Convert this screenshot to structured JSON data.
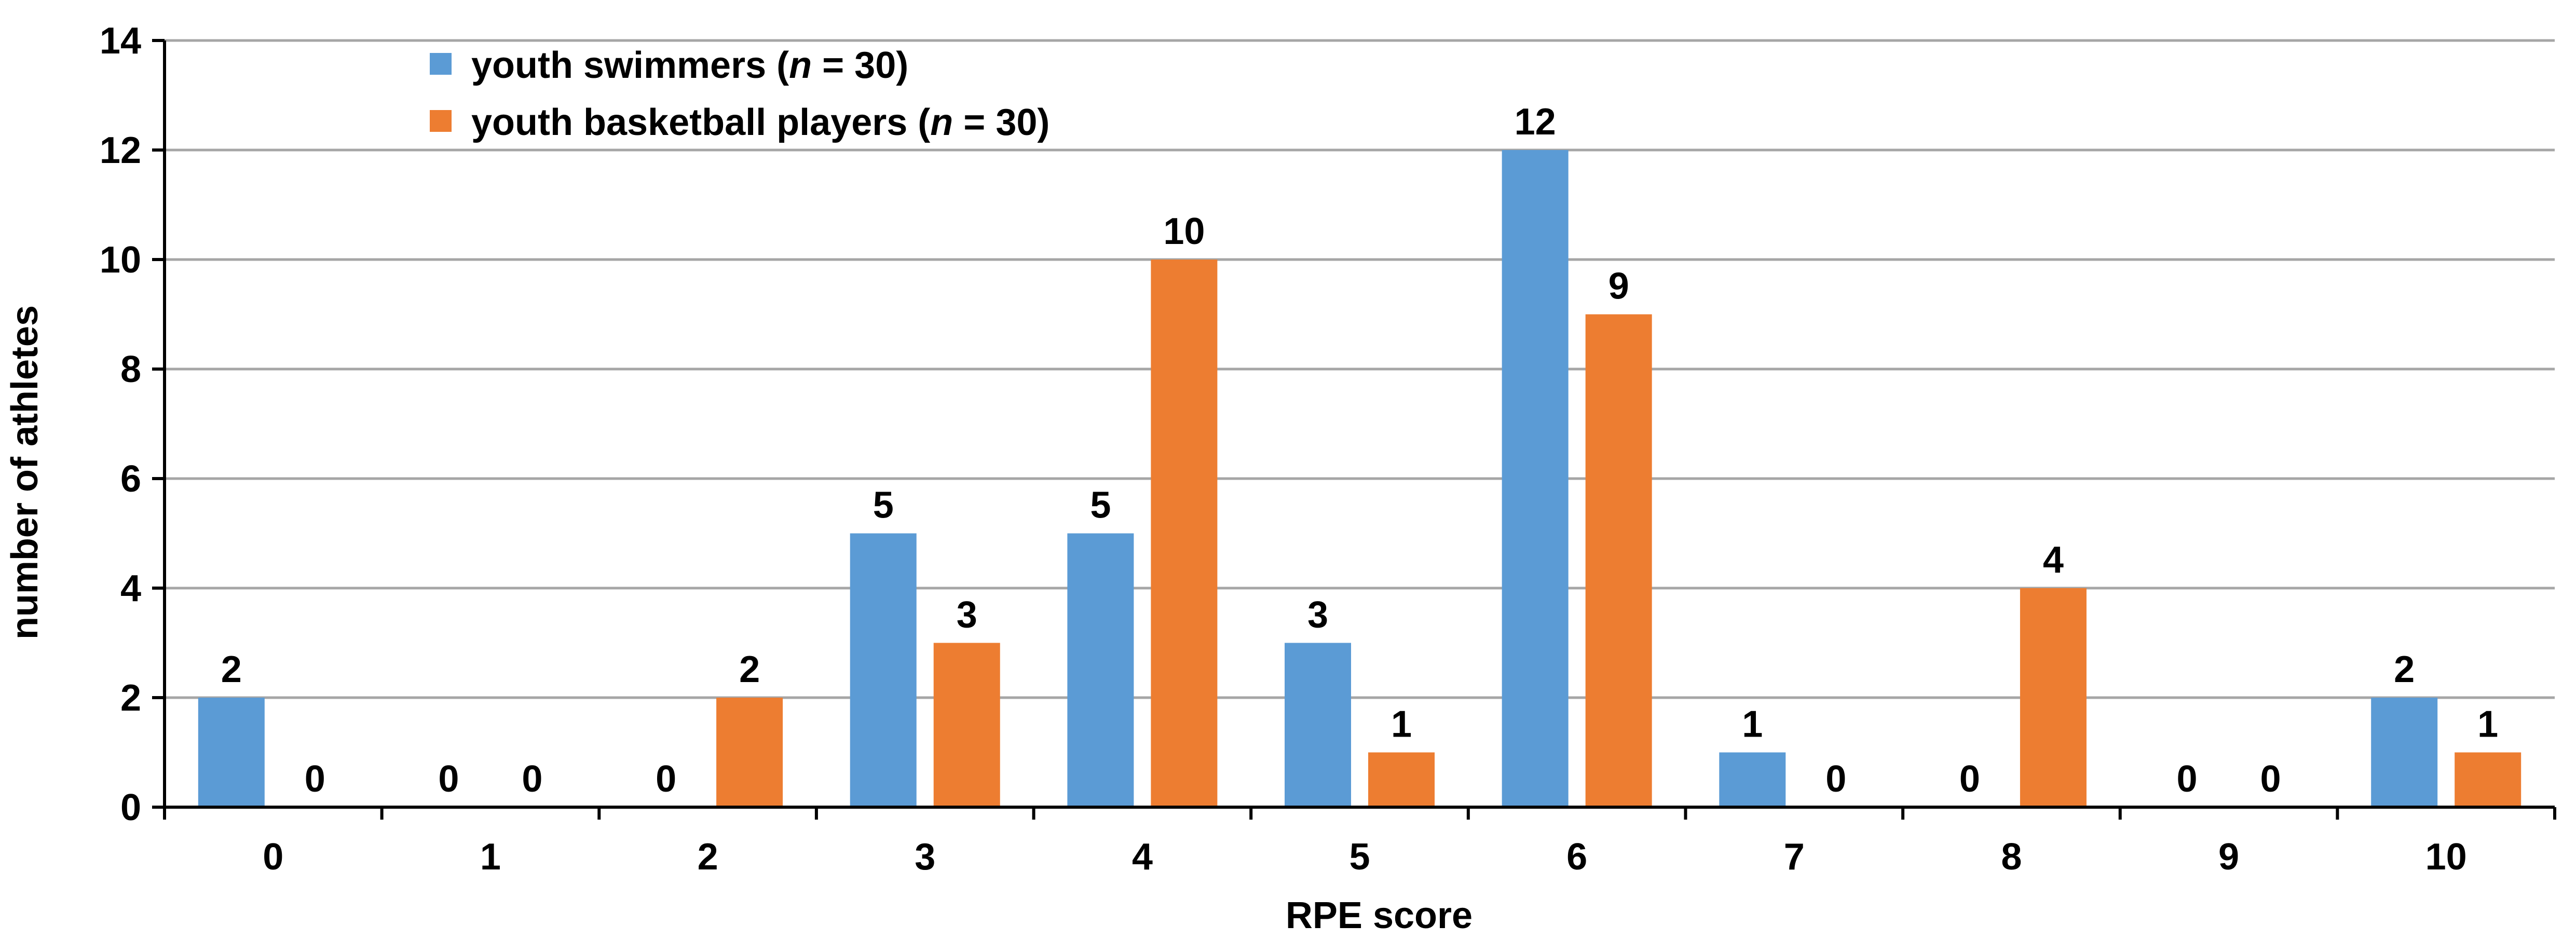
{
  "chart_data": {
    "type": "bar",
    "categories": [
      "0",
      "1",
      "2",
      "3",
      "4",
      "5",
      "6",
      "7",
      "8",
      "9",
      "10"
    ],
    "series": [
      {
        "name_prefix": "youth swimmers (",
        "name_italic": "n",
        "name_suffix": " = 30)",
        "color": "#5B9BD5",
        "values": [
          2,
          0,
          0,
          5,
          5,
          3,
          12,
          1,
          0,
          0,
          2
        ]
      },
      {
        "name_prefix": "youth basketball players (",
        "name_italic": "n",
        "name_suffix": " = 30)",
        "color": "#ED7D31",
        "values": [
          0,
          0,
          2,
          3,
          10,
          1,
          9,
          0,
          4,
          0,
          1
        ]
      }
    ],
    "xlabel": "RPE score",
    "ylabel": "number of athletes",
    "ylim": [
      0,
      14
    ],
    "yticks": [
      "0",
      "2",
      "4",
      "6",
      "8",
      "10",
      "12",
      "14"
    ],
    "grid": true,
    "legend_position": "top-left",
    "gridline_color": "#A6A6A6",
    "axis_color": "#000000"
  }
}
